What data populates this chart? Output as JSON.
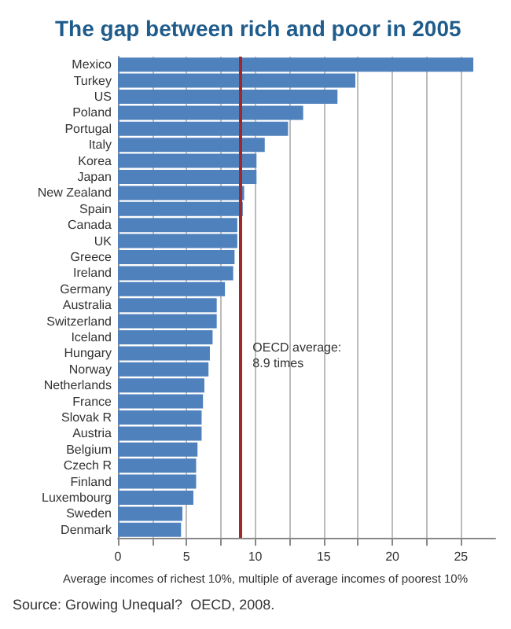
{
  "chart_data": {
    "type": "bar",
    "orientation": "horizontal",
    "title": "The gap between rich and poor in 2005",
    "xlabel": "Average incomes of richest 10%, multiple of average incomes of poorest 10%",
    "categories": [
      "Mexico",
      "Turkey",
      "US",
      "Poland",
      "Portugal",
      "Italy",
      "Korea",
      "Japan",
      "New Zealand",
      "Spain",
      "Canada",
      "UK",
      "Greece",
      "Ireland",
      "Germany",
      "Australia",
      "Switzerland",
      "Iceland",
      "Hungary",
      "Norway",
      "Netherlands",
      "France",
      "Slovak R",
      "Austria",
      "Belgium",
      "Czech R",
      "Finland",
      "Luxembourg",
      "Sweden",
      "Denmark"
    ],
    "values": [
      25.9,
      17.3,
      16.0,
      13.5,
      12.4,
      10.7,
      10.1,
      10.1,
      9.2,
      9.1,
      8.7,
      8.7,
      8.5,
      8.4,
      7.8,
      7.2,
      7.2,
      6.9,
      6.7,
      6.6,
      6.3,
      6.2,
      6.1,
      6.1,
      5.8,
      5.7,
      5.7,
      5.5,
      4.7,
      4.6
    ],
    "color": "#4f81bd",
    "xlim": [
      0,
      27.5
    ],
    "xticks": [
      0,
      {
        "value": 2.5,
        "label": null
      },
      5,
      {
        "value": 7.5,
        "label": null
      },
      10,
      {
        "value": 12.5,
        "label": null
      },
      15,
      {
        "value": 17.5,
        "label": null
      },
      20,
      {
        "value": 22.5,
        "label": null
      },
      25
    ],
    "grid": "x",
    "ref_lines": [
      {
        "axis": "x",
        "value": 8.9,
        "label": "OECD average:\n8.9 times",
        "color": "#a0282a"
      }
    ],
    "annotations": [
      "Source: Growing Unequal?  OECD, 2008."
    ]
  }
}
